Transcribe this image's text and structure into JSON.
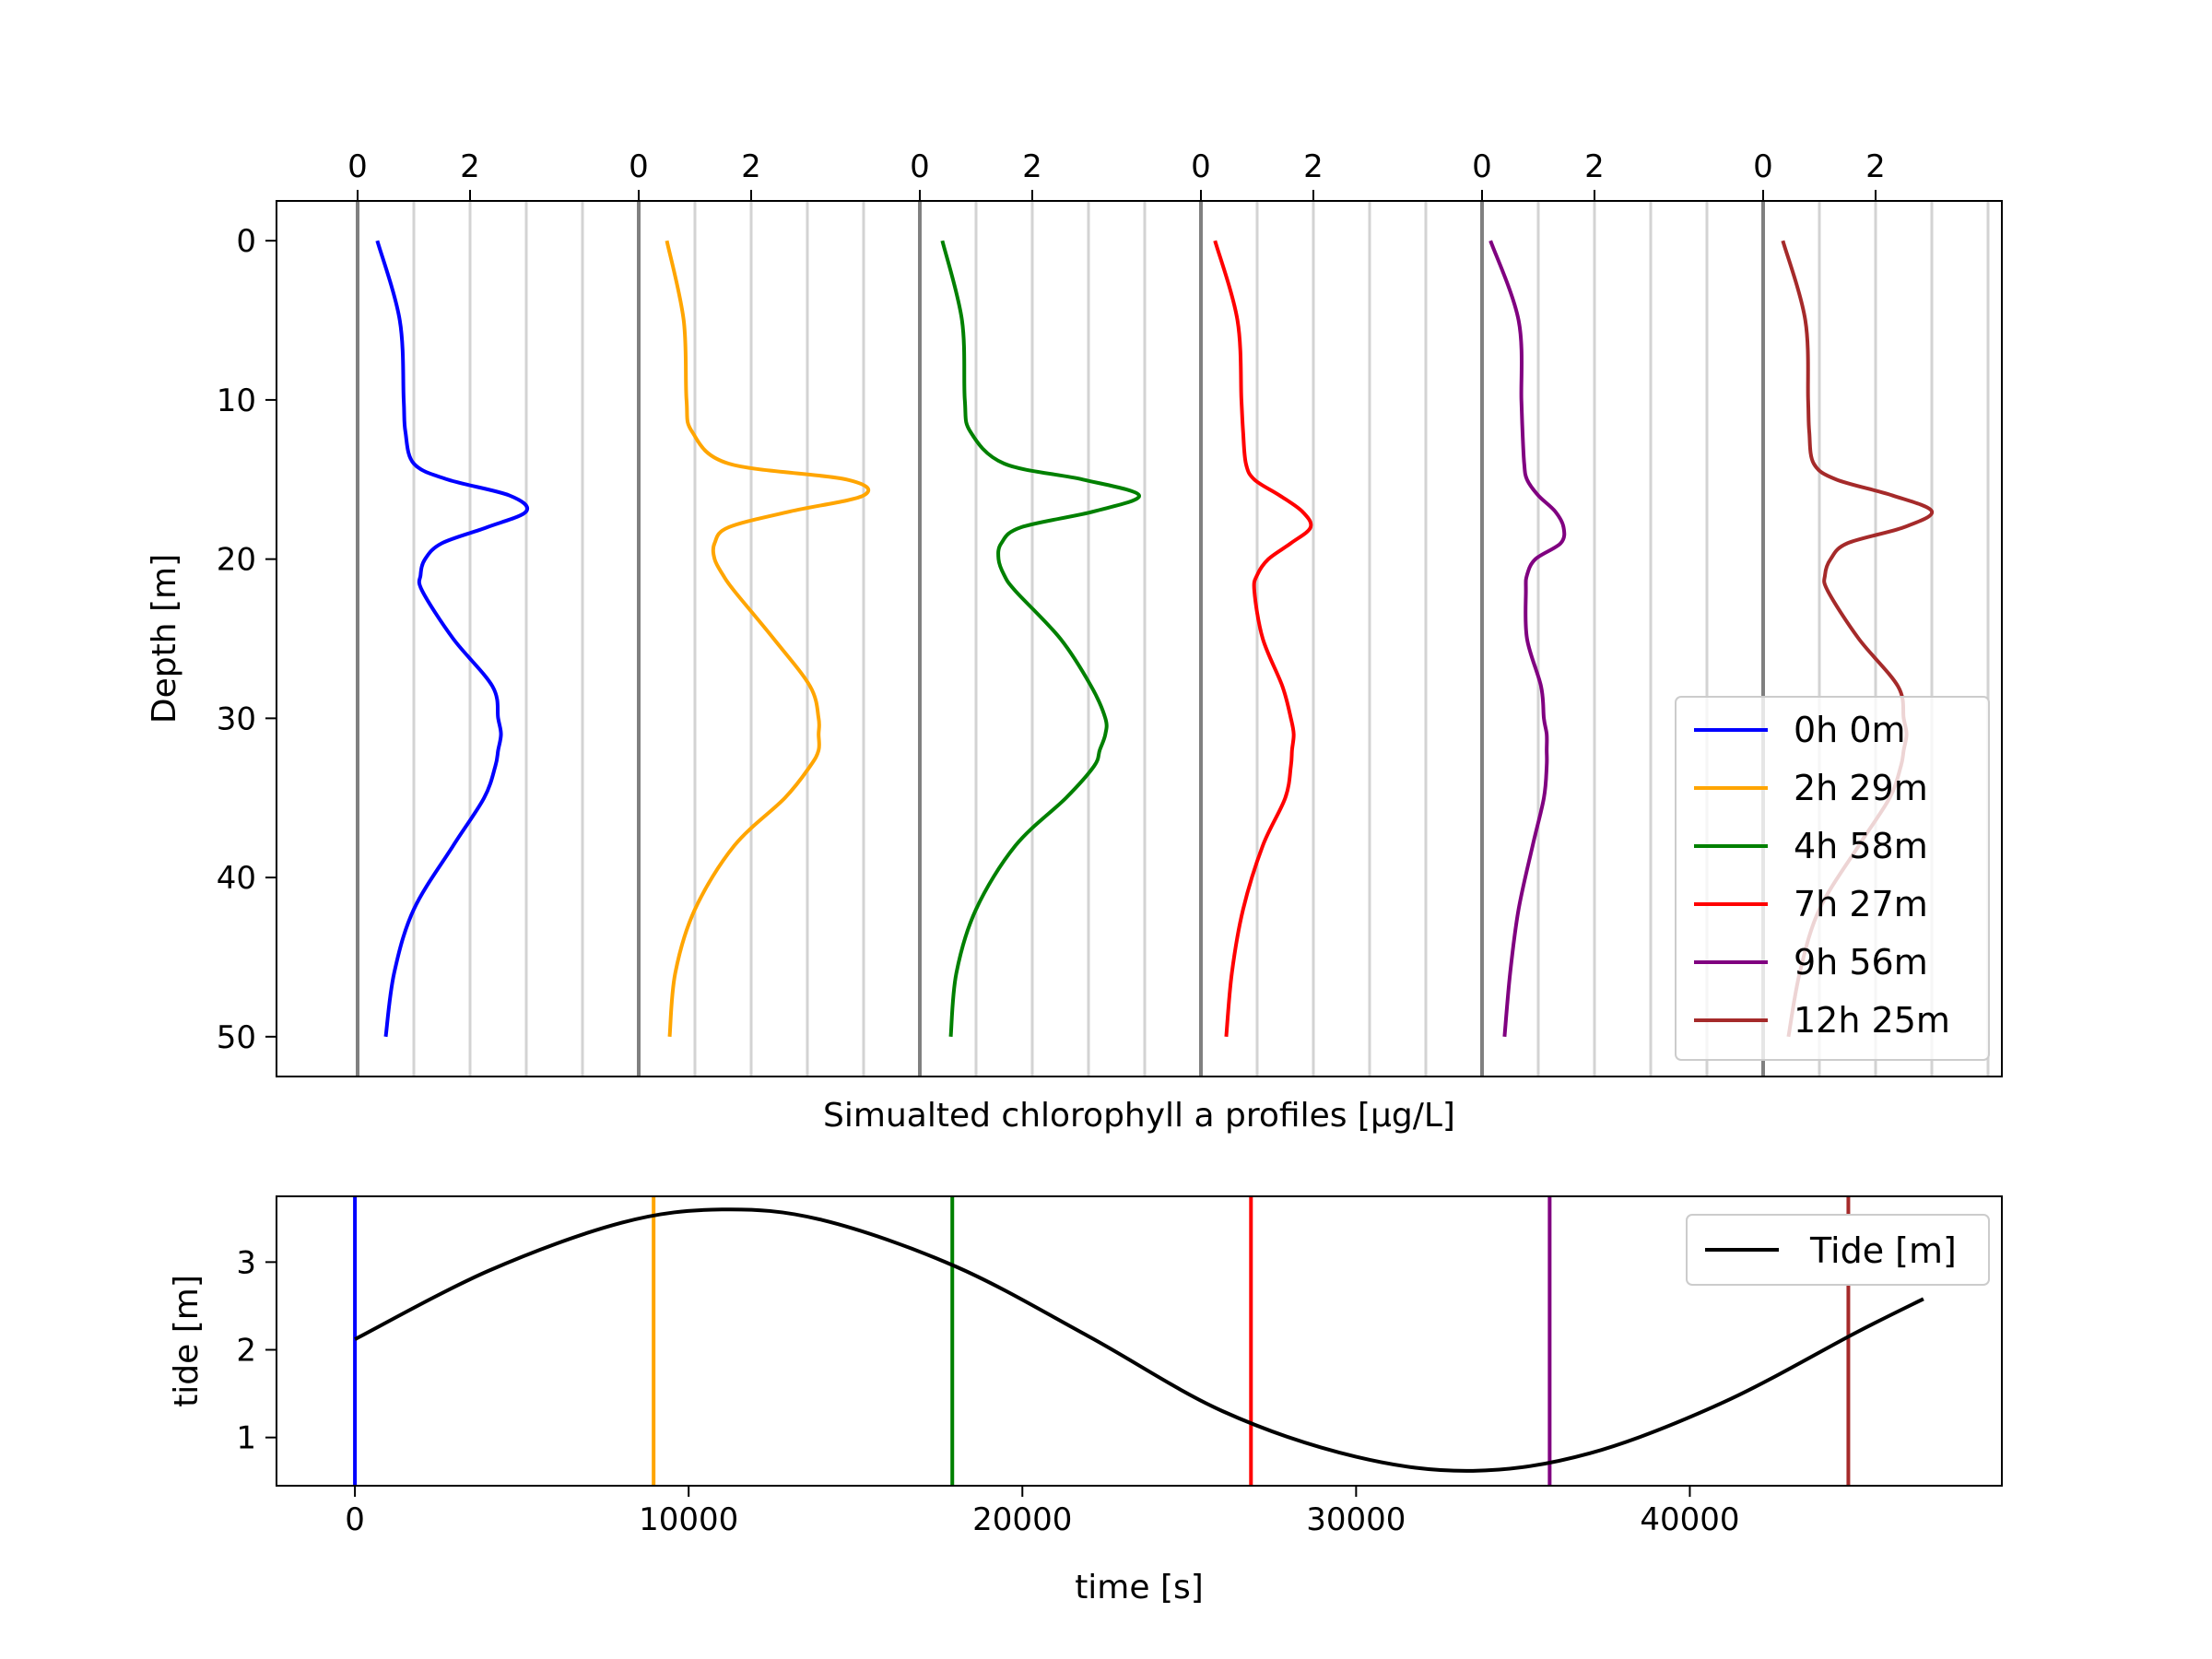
{
  "figure": {
    "profiles_xlabel": "Simualted chlorophyll a profiles [μg/L]",
    "profiles_ylabel": "Depth [m]",
    "tide_xlabel": "time [s]",
    "tide_ylabel": "tide [m]",
    "tide_legend": "Tide [m]"
  },
  "chart_data": [
    {
      "type": "line",
      "title": "",
      "xlabel": "Simualted chlorophyll a profiles [μg/L]",
      "ylabel": "Depth [m]",
      "ylim": [
        52.5,
        -2.5
      ],
      "yticks": [
        0,
        10,
        20,
        30,
        40,
        50
      ],
      "panel_xticks": [
        0,
        2
      ],
      "panel_xlim": [
        -0.3,
        4.0
      ],
      "grid": "vertical lines at 1 ug/L spacing within each panel",
      "legend": "lower-right",
      "depth": [
        0,
        5,
        10,
        12,
        14,
        15,
        16,
        17,
        18,
        19,
        20,
        21,
        22,
        25,
        28,
        30,
        31,
        32,
        33,
        35,
        38,
        42,
        46,
        50
      ],
      "series": [
        {
          "name": "0h 0m",
          "color": "#0000ff",
          "values": [
            0.35,
            0.75,
            0.82,
            0.85,
            1.0,
            1.6,
            2.7,
            3.0,
            2.3,
            1.5,
            1.2,
            1.12,
            1.15,
            1.7,
            2.4,
            2.5,
            2.55,
            2.5,
            2.45,
            2.25,
            1.7,
            1.0,
            0.65,
            0.5
          ]
        },
        {
          "name": "2h 29m",
          "color": "#ffa500",
          "values": [
            0.5,
            0.8,
            0.85,
            0.95,
            1.6,
            3.7,
            4.0,
            2.7,
            1.6,
            1.35,
            1.35,
            1.5,
            1.7,
            2.4,
            3.05,
            3.2,
            3.2,
            3.2,
            3.05,
            2.6,
            1.7,
            1.0,
            0.65,
            0.55
          ]
        },
        {
          "name": "4h 58m",
          "color": "#008000",
          "values": [
            0.4,
            0.75,
            0.8,
            0.9,
            1.5,
            2.9,
            3.9,
            3.1,
            1.8,
            1.45,
            1.4,
            1.5,
            1.7,
            2.5,
            3.05,
            3.3,
            3.3,
            3.2,
            3.1,
            2.6,
            1.7,
            1.0,
            0.65,
            0.55
          ]
        },
        {
          "name": "7h 27m",
          "color": "#ff0000",
          "values": [
            0.25,
            0.65,
            0.72,
            0.75,
            0.8,
            0.95,
            1.4,
            1.8,
            1.95,
            1.6,
            1.2,
            1.0,
            0.95,
            1.1,
            1.45,
            1.6,
            1.65,
            1.62,
            1.6,
            1.5,
            1.1,
            0.75,
            0.55,
            0.45
          ]
        },
        {
          "name": "9h 56m",
          "color": "#800080",
          "values": [
            0.15,
            0.65,
            0.7,
            0.72,
            0.75,
            0.8,
            1.0,
            1.3,
            1.45,
            1.4,
            0.95,
            0.8,
            0.78,
            0.8,
            1.05,
            1.1,
            1.15,
            1.15,
            1.15,
            1.1,
            0.9,
            0.65,
            0.5,
            0.4
          ]
        },
        {
          "name": "12h 25m",
          "color": "#a52a2a",
          "values": [
            0.35,
            0.75,
            0.8,
            0.82,
            0.9,
            1.3,
            2.3,
            3.0,
            2.5,
            1.5,
            1.2,
            1.1,
            1.15,
            1.7,
            2.4,
            2.5,
            2.55,
            2.5,
            2.45,
            2.25,
            1.7,
            1.0,
            0.65,
            0.45
          ]
        }
      ]
    },
    {
      "type": "line",
      "title": "",
      "xlabel": "time [s]",
      "ylabel": "tide [m]",
      "xlim": [
        -2350,
        49350
      ],
      "ylim": [
        0.45,
        3.75
      ],
      "xticks": [
        0,
        10000,
        20000,
        30000,
        40000
      ],
      "yticks": [
        1,
        2,
        3
      ],
      "legend": "top-right",
      "series": [
        {
          "name": "Tide [m]",
          "color": "#000000",
          "x": [
            0,
            4000,
            8000,
            11000,
            14000,
            18000,
            22000,
            26000,
            30000,
            33500,
            37000,
            41000,
            45000,
            47000
          ],
          "values": [
            2.12,
            2.9,
            3.45,
            3.6,
            3.48,
            2.95,
            2.15,
            1.3,
            0.78,
            0.62,
            0.82,
            1.4,
            2.2,
            2.58
          ]
        }
      ],
      "markers": [
        {
          "x": 0,
          "color": "#0000ff"
        },
        {
          "x": 8950,
          "color": "#ffa500"
        },
        {
          "x": 17900,
          "color": "#008000"
        },
        {
          "x": 26850,
          "color": "#ff0000"
        },
        {
          "x": 35800,
          "color": "#800080"
        },
        {
          "x": 44750,
          "color": "#a52a2a"
        }
      ]
    }
  ]
}
